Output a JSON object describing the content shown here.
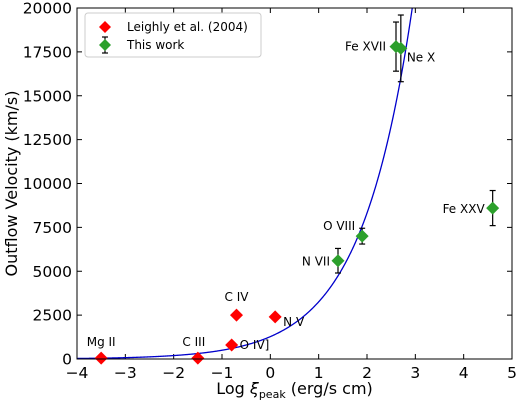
{
  "chart_data": {
    "type": "scatter",
    "xlabel_prefix": "Log ",
    "xlabel_symbol": "ξ",
    "xlabel_subscript": "peak",
    "xlabel_suffix": " (erg/s cm)",
    "ylabel": "Outflow Velocity (km/s)",
    "xlim": [
      -4,
      5
    ],
    "ylim": [
      0,
      20000
    ],
    "xticks": [
      -4,
      -3,
      -2,
      -1,
      0,
      1,
      2,
      3,
      4,
      5
    ],
    "yticks": [
      0,
      2500,
      5000,
      7500,
      10000,
      12500,
      15000,
      17500,
      20000
    ],
    "xtick_labels": [
      "−4",
      "−3",
      "−2",
      "−1",
      "0",
      "1",
      "2",
      "3",
      "4",
      "5"
    ],
    "ytick_labels": [
      "0",
      "2500",
      "5000",
      "7500",
      "10000",
      "12500",
      "15000",
      "17500",
      "20000"
    ],
    "legend_position": "top-left",
    "series": [
      {
        "name": "Leighly et al. (2004)",
        "color": "#ff0000",
        "marker": "diamond",
        "points": [
          {
            "label": "Mg II",
            "x": -3.5,
            "y": 50
          },
          {
            "label": "C III",
            "x": -1.5,
            "y": 50
          },
          {
            "label": "O IV]",
            "x": -0.8,
            "y": 800
          },
          {
            "label": "C IV",
            "x": -0.7,
            "y": 2500
          },
          {
            "label": "N V",
            "x": 0.1,
            "y": 2400
          }
        ]
      },
      {
        "name": "This work",
        "color": "#2ca02c",
        "marker": "diamond",
        "error_bars": true,
        "points": [
          {
            "label": "N VII",
            "x": 1.4,
            "y": 5600,
            "err": 700
          },
          {
            "label": "O VIII",
            "x": 1.9,
            "y": 7000,
            "err": 450
          },
          {
            "label": "Fe XVII",
            "x": 2.6,
            "y": 17800,
            "err": 1400
          },
          {
            "label": "Ne X",
            "x": 2.7,
            "y": 17700,
            "err": 1900
          },
          {
            "label": "Fe XXV",
            "x": 4.6,
            "y": 8600,
            "err": 1000
          }
        ]
      }
    ],
    "fit_curve": {
      "color": "#0000cc",
      "form": "exponential",
      "y_at_x_minus4": 30,
      "y_at_x_2_8": 17600
    }
  }
}
